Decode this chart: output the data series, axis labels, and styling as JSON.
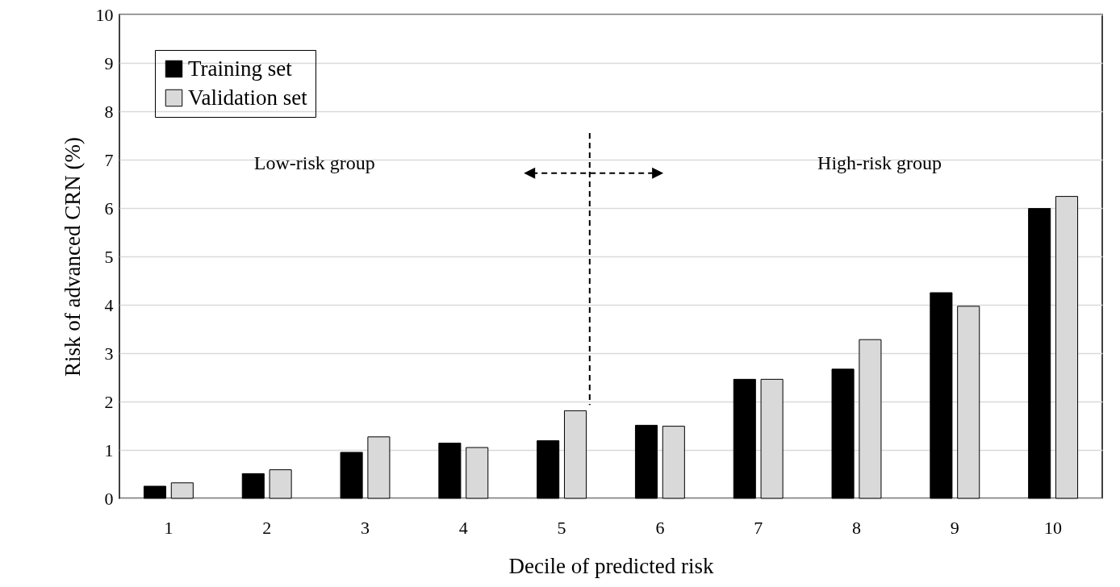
{
  "chart_data": {
    "type": "bar",
    "xlabel": "Decile of predicted risk",
    "ylabel": "Risk of advanced CRN (%)",
    "categories": [
      "1",
      "2",
      "3",
      "4",
      "5",
      "6",
      "7",
      "8",
      "9",
      "10"
    ],
    "series": [
      {
        "name": "Training set",
        "color": "#000000",
        "values": [
          0.25,
          0.51,
          0.95,
          1.14,
          1.19,
          1.51,
          2.46,
          2.67,
          4.25,
          5.99
        ]
      },
      {
        "name": "Validation set",
        "color": "#d9d9d9",
        "values": [
          0.32,
          0.59,
          1.27,
          1.05,
          1.81,
          1.49,
          2.46,
          3.28,
          3.97,
          6.24
        ]
      }
    ],
    "ylim": [
      0,
      10
    ],
    "yticks": [
      0,
      1,
      2,
      3,
      4,
      5,
      6,
      7,
      8,
      9,
      10
    ],
    "grid": "y",
    "legend": "top left",
    "annotations": [
      "Low-risk group",
      "High-risk group"
    ]
  }
}
